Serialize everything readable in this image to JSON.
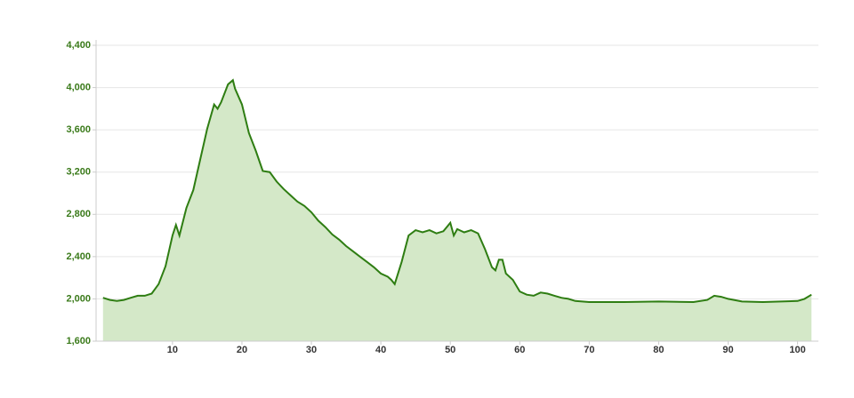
{
  "chart_data": {
    "type": "area",
    "x": [
      0,
      1,
      2,
      3,
      4,
      5,
      6,
      7,
      8,
      9,
      10,
      10.5,
      11,
      12,
      13,
      14,
      15,
      16,
      16.5,
      17,
      18,
      18.7,
      19,
      20,
      21,
      22,
      23,
      24,
      25,
      26,
      27,
      28,
      29,
      30,
      31,
      32,
      33,
      34,
      35,
      36,
      37,
      38,
      39,
      40,
      41,
      41.5,
      42,
      43,
      44,
      45,
      46,
      47,
      48,
      49,
      50,
      50.5,
      51,
      52,
      53,
      54,
      55,
      56,
      56.5,
      57,
      57.5,
      58,
      59,
      60,
      61,
      62,
      63,
      64,
      65,
      66,
      67,
      68,
      70,
      75,
      80,
      85,
      87,
      88,
      89,
      90,
      92,
      95,
      100,
      101,
      102
    ],
    "series": [
      {
        "color": "#2e7d12",
        "fill": "#d4e8c8",
        "values": [
          2010,
          1990,
          1980,
          1990,
          2010,
          2030,
          2030,
          2050,
          2140,
          2310,
          2600,
          2700,
          2600,
          2860,
          3030,
          3320,
          3610,
          3840,
          3800,
          3860,
          4030,
          4070,
          3990,
          3840,
          3570,
          3400,
          3210,
          3200,
          3110,
          3040,
          2980,
          2920,
          2880,
          2820,
          2740,
          2680,
          2610,
          2560,
          2500,
          2450,
          2400,
          2350,
          2300,
          2240,
          2210,
          2180,
          2140,
          2350,
          2600,
          2650,
          2630,
          2650,
          2620,
          2640,
          2720,
          2600,
          2660,
          2630,
          2650,
          2620,
          2470,
          2300,
          2270,
          2370,
          2370,
          2240,
          2180,
          2070,
          2040,
          2030,
          2060,
          2050,
          2030,
          2010,
          2000,
          1980,
          1970,
          1970,
          1975,
          1970,
          1990,
          2030,
          2020,
          2000,
          1975,
          1970,
          1980,
          2000,
          2040
        ]
      }
    ],
    "xlim": [
      -1,
      103
    ],
    "xticks": [
      10,
      20,
      30,
      40,
      50,
      60,
      70,
      80,
      90,
      100
    ],
    "ylim": [
      1600,
      4400
    ],
    "yticks": [
      {
        "value": 1600,
        "label": "1,600"
      },
      {
        "value": 2000,
        "label": "2,000"
      },
      {
        "value": 2400,
        "label": "2,400"
      },
      {
        "value": 2800,
        "label": "2,800"
      },
      {
        "value": 3200,
        "label": "3,200"
      },
      {
        "value": 3600,
        "label": "3,600"
      },
      {
        "value": 4000,
        "label": "4,000"
      },
      {
        "value": 4400,
        "label": "4,400"
      }
    ],
    "grid": true
  }
}
